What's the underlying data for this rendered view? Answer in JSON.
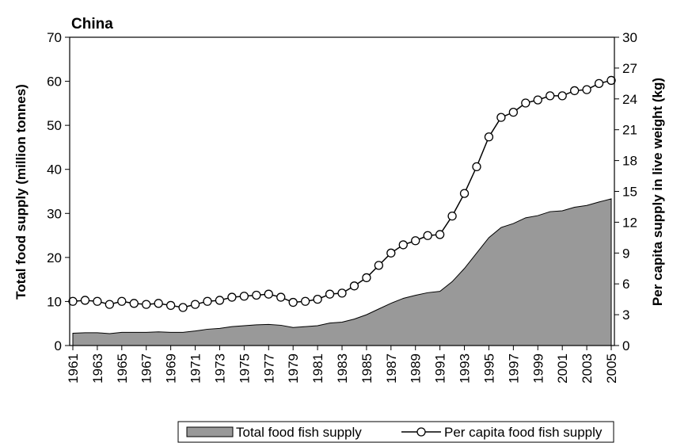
{
  "chart_data": {
    "type": "area",
    "title": "China",
    "y_label": "Total food supply (million tonnes)",
    "y2_label": "Per capita supply in live weight (kg)",
    "x": [
      1961,
      1962,
      1963,
      1964,
      1965,
      1966,
      1967,
      1968,
      1969,
      1970,
      1971,
      1972,
      1973,
      1974,
      1975,
      1976,
      1977,
      1978,
      1979,
      1980,
      1981,
      1982,
      1983,
      1984,
      1985,
      1986,
      1987,
      1988,
      1989,
      1990,
      1991,
      1992,
      1993,
      1994,
      1995,
      1996,
      1997,
      1998,
      1999,
      2000,
      2001,
      2002,
      2003,
      2004,
      2005
    ],
    "xlim": [
      1961,
      2005
    ],
    "xticks": [
      1961,
      1963,
      1965,
      1967,
      1969,
      1971,
      1973,
      1975,
      1977,
      1979,
      1981,
      1983,
      1985,
      1987,
      1989,
      1991,
      1993,
      1995,
      1997,
      1999,
      2001,
      2003,
      2005
    ],
    "ylim": [
      0,
      70
    ],
    "yticks": [
      0,
      10,
      20,
      30,
      40,
      50,
      60,
      70
    ],
    "y2lim": [
      0,
      30
    ],
    "y2ticks": [
      0,
      3,
      6,
      9,
      12,
      15,
      18,
      21,
      24,
      27,
      30
    ],
    "series": [
      {
        "name": "Total food fish supply",
        "type": "area",
        "color": "#999999",
        "values": [
          2.8,
          2.9,
          2.9,
          2.7,
          3.0,
          3.0,
          3.0,
          3.1,
          3.0,
          3.0,
          3.3,
          3.7,
          3.9,
          4.3,
          4.5,
          4.7,
          4.8,
          4.6,
          4.1,
          4.3,
          4.5,
          5.1,
          5.3,
          6.0,
          7.0,
          8.3,
          9.6,
          10.7,
          11.4,
          12.0,
          12.3,
          14.5,
          17.5,
          21.0,
          24.5,
          26.8,
          27.7,
          29.0,
          29.5,
          30.4,
          30.6,
          31.4,
          31.8,
          32.6,
          33.3
        ]
      },
      {
        "name": "Per capita food fish supply",
        "type": "line",
        "axis": "y2",
        "color": "#000000",
        "values": [
          4.3,
          4.4,
          4.3,
          4.0,
          4.3,
          4.1,
          4.0,
          4.1,
          3.9,
          3.7,
          4.0,
          4.3,
          4.4,
          4.7,
          4.8,
          4.9,
          5.0,
          4.7,
          4.2,
          4.3,
          4.5,
          5.0,
          5.1,
          5.8,
          6.6,
          7.8,
          9.0,
          9.8,
          10.2,
          10.7,
          10.8,
          12.6,
          14.8,
          17.4,
          20.3,
          22.2,
          22.7,
          23.6,
          23.9,
          24.3,
          24.3,
          24.8,
          24.9,
          25.5,
          25.8
        ]
      }
    ]
  }
}
